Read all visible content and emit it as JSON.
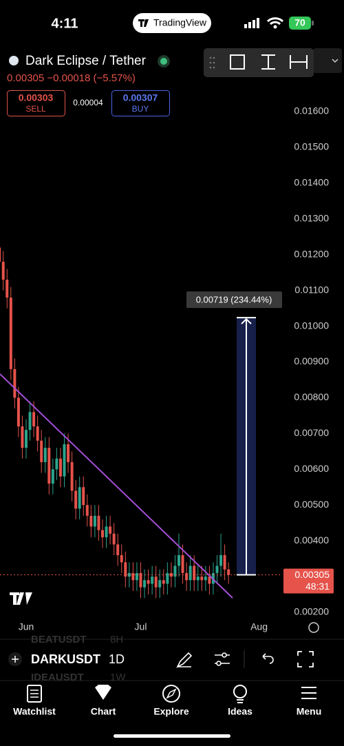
{
  "status_bar": {
    "time": "4:11",
    "app": "TradingView",
    "battery": "70"
  },
  "header": {
    "symbol": "Dark Eclipse / Tether",
    "quote": "0.00305 −0.00018 (−5.57%)",
    "sell_price": "0.00303",
    "sell": "SELL",
    "spread": "0.00004",
    "buy_price": "0.00307",
    "buy": "BUY"
  },
  "chart_data": {
    "type": "candlestick",
    "up_color": "#2ca58d",
    "down_color": "#e5534b",
    "grid": false,
    "categories": [
      null,
      null,
      null,
      null,
      null,
      null,
      null,
      "Jun",
      null,
      null,
      null,
      null,
      null,
      null,
      null,
      null,
      null,
      null,
      null,
      null,
      null,
      null,
      null,
      null,
      null,
      null,
      null,
      null,
      null,
      null,
      null,
      null,
      null,
      null,
      null,
      null,
      null,
      "Jul",
      null,
      null,
      null,
      null,
      null,
      null,
      null,
      null,
      null,
      null,
      null,
      null,
      null,
      null,
      null,
      null,
      null,
      null,
      null,
      null,
      null,
      null,
      null,
      null,
      null,
      null,
      null,
      null,
      null,
      null,
      "Aug"
    ],
    "open": [
      0.0122,
      0.0118,
      0.0113,
      0.0108,
      0.0088,
      0.008,
      0.0072,
      0.0066,
      0.0071,
      0.0076,
      0.0072,
      0.0068,
      0.0062,
      0.0066,
      0.0056,
      0.006,
      0.0063,
      0.0058,
      0.0067,
      0.0062,
      0.0054,
      0.0049,
      0.0055,
      0.005,
      0.0047,
      0.0044,
      0.0047,
      0.0043,
      0.0041,
      0.0044,
      0.0042,
      0.0039,
      0.0036,
      0.0034,
      0.003,
      0.0031,
      0.0029,
      0.0031,
      0.0027,
      0.0029,
      0.0028,
      0.003,
      0.0027,
      0.0029,
      0.0028,
      0.0031,
      0.003,
      0.0033,
      0.0036,
      0.0031,
      0.0029,
      0.0033,
      0.0029,
      0.003,
      0.0029,
      0.003,
      0.0028,
      0.0031,
      0.0033,
      0.0036,
      0.0032,
      null,
      null,
      null,
      null,
      null,
      null,
      null,
      null
    ],
    "high": [
      0.0125,
      0.0121,
      0.0116,
      0.0111,
      0.0091,
      0.0083,
      0.0075,
      0.0074,
      0.0079,
      0.0079,
      0.0075,
      0.0071,
      0.0069,
      0.0069,
      0.0063,
      0.0066,
      0.0066,
      0.007,
      0.007,
      0.0065,
      0.0057,
      0.0058,
      0.0058,
      0.0053,
      0.005,
      0.005,
      0.005,
      0.0046,
      0.0047,
      0.0047,
      0.0045,
      0.0042,
      0.0039,
      0.0037,
      0.0034,
      0.0034,
      0.0034,
      0.0034,
      0.0032,
      0.0032,
      0.0033,
      0.0033,
      0.0032,
      0.0032,
      0.0034,
      0.0034,
      0.0036,
      0.0042,
      0.0039,
      0.0034,
      0.0036,
      0.0036,
      0.0033,
      0.0033,
      0.0033,
      0.0033,
      0.0034,
      0.0036,
      0.0042,
      0.0039,
      0.0034,
      null,
      null,
      null,
      null,
      null,
      null,
      null,
      null
    ],
    "low": [
      0.0115,
      0.011,
      0.0105,
      0.0085,
      0.0077,
      0.0069,
      0.0063,
      0.0063,
      0.0068,
      0.0069,
      0.0065,
      0.0059,
      0.0059,
      0.0053,
      0.0053,
      0.0057,
      0.0055,
      0.0055,
      0.0059,
      0.0051,
      0.0046,
      0.0046,
      0.0047,
      0.0044,
      0.0041,
      0.0041,
      0.004,
      0.0038,
      0.0038,
      0.0039,
      0.0036,
      0.0033,
      0.0031,
      0.0027,
      0.0027,
      0.0026,
      0.0026,
      0.0024,
      0.0024,
      0.0025,
      0.0025,
      0.0024,
      0.0024,
      0.0025,
      0.0025,
      0.0027,
      0.0027,
      0.003,
      0.0028,
      0.0026,
      0.0026,
      0.0026,
      0.0026,
      0.0026,
      0.0026,
      0.0025,
      0.0025,
      0.0028,
      0.003,
      0.0029,
      0.0028,
      null,
      null,
      null,
      null,
      null,
      null,
      null,
      null
    ],
    "close": [
      0.0118,
      0.0113,
      0.0108,
      0.0088,
      0.008,
      0.0072,
      0.0066,
      0.0071,
      0.0076,
      0.0072,
      0.0068,
      0.0062,
      0.0066,
      0.0056,
      0.006,
      0.0063,
      0.0058,
      0.0067,
      0.0062,
      0.0054,
      0.0049,
      0.0055,
      0.005,
      0.0047,
      0.0044,
      0.0047,
      0.0043,
      0.0041,
      0.0044,
      0.0042,
      0.0039,
      0.0036,
      0.0034,
      0.003,
      0.0031,
      0.0029,
      0.0031,
      0.0027,
      0.0029,
      0.0028,
      0.003,
      0.0027,
      0.0029,
      0.0028,
      0.0031,
      0.003,
      0.0033,
      0.0036,
      0.0031,
      0.0029,
      0.0033,
      0.0029,
      0.003,
      0.0029,
      0.003,
      0.0028,
      0.0031,
      0.0033,
      0.0036,
      0.0032,
      0.00305,
      null,
      null,
      null,
      null,
      null,
      null,
      null,
      null
    ],
    "ylim": [
      0.0018,
      0.0176
    ],
    "yticks": [
      {
        "value": 0.002,
        "label": "0.00200"
      },
      {
        "value": 0.004,
        "label": "0.00400"
      },
      {
        "value": 0.005,
        "label": "0.00500"
      },
      {
        "value": 0.006,
        "label": "0.00600"
      },
      {
        "value": 0.007,
        "label": "0.00700"
      },
      {
        "value": 0.008,
        "label": "0.00800"
      },
      {
        "value": 0.009,
        "label": "0.00900"
      },
      {
        "value": 0.01,
        "label": "0.01000"
      },
      {
        "value": 0.011,
        "label": "0.01100"
      },
      {
        "value": 0.012,
        "label": "0.01200"
      },
      {
        "value": 0.013,
        "label": "0.01300"
      },
      {
        "value": 0.014,
        "label": "0.01400"
      },
      {
        "value": 0.015,
        "label": "0.01500"
      },
      {
        "value": 0.016,
        "label": "0.01600"
      }
    ],
    "measure": {
      "value": 0.00719,
      "label": "0.00719 (234.44%)"
    },
    "countdown": "48:31"
  },
  "toolbar": {
    "symbol": "DARKUSDT",
    "interval": "1D",
    "ghost_symbols": [
      "BEATUSDT",
      "IDEAUSDT"
    ],
    "ghost_intervals": [
      "8H",
      "1W"
    ]
  },
  "nav": [
    "Watchlist",
    "Chart",
    "Explore",
    "Ideas",
    "Menu"
  ]
}
